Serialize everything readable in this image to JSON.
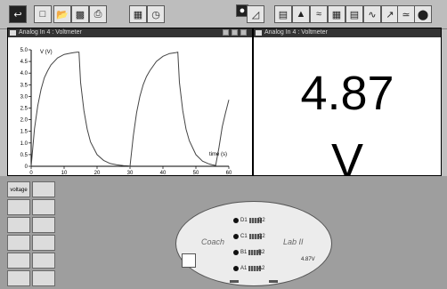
{
  "graph_panel": {
    "title": "Analog In 4 : Voltmeter",
    "ylabel": "V (V)",
    "xlabel": "time (s)"
  },
  "meter_panel": {
    "title": "Analog In 4 : Voltmeter",
    "value": "4.87",
    "unit": "V"
  },
  "chart_data": {
    "type": "line",
    "xlabel": "time (s)",
    "ylabel": "V (V)",
    "xlim": [
      0,
      60
    ],
    "ylim": [
      0,
      5.0
    ],
    "xticks": [
      "0",
      "10",
      "20",
      "30",
      "40",
      "50",
      "60"
    ],
    "yticks": [
      "0",
      "0.5",
      "1.0",
      "1.5",
      "2.0",
      "2.5",
      "3.0",
      "3.5",
      "4.0",
      "4.5",
      "5.0"
    ],
    "series": [
      {
        "x": [
          0,
          1,
          2,
          3,
          4,
          5,
          6,
          8,
          10,
          12,
          13,
          14,
          14.5,
          15,
          16,
          17,
          18,
          20,
          22,
          24,
          26,
          28,
          29.5,
          30,
          31,
          32,
          33,
          34,
          35,
          36,
          38,
          40,
          42,
          44,
          44.5,
          45,
          46,
          47,
          48,
          50,
          52,
          54,
          55,
          56,
          57,
          58,
          59,
          60
        ],
        "y": [
          0.0,
          1.6,
          2.6,
          3.3,
          3.8,
          4.1,
          4.35,
          4.65,
          4.8,
          4.86,
          4.88,
          4.9,
          4.9,
          3.6,
          2.4,
          1.6,
          1.05,
          0.5,
          0.25,
          0.12,
          0.06,
          0.03,
          0.02,
          0.0,
          1.3,
          2.3,
          3.0,
          3.5,
          3.85,
          4.1,
          4.5,
          4.72,
          4.84,
          4.88,
          4.9,
          3.6,
          2.4,
          1.6,
          1.1,
          0.5,
          0.22,
          0.1,
          0.06,
          0.04,
          0.8,
          1.7,
          2.3,
          2.85
        ]
      }
    ]
  },
  "toolbar": {
    "icons": [
      "exit-icon",
      "new-file-icon",
      "open-file-icon",
      "save-file-icon",
      "print-icon",
      "setup-icon",
      "timer-icon",
      "record-icon",
      "graph-icon",
      "table-icon",
      "meter-icon",
      "digits-icon",
      "scope-icon",
      "fft-icon",
      "calculator-icon",
      "stop-icon"
    ]
  },
  "signal_grid": {
    "cells": [
      "voltage",
      "",
      "",
      "",
      "",
      "",
      "",
      "",
      "",
      "",
      "",
      "",
      "",
      ""
    ]
  },
  "interface": {
    "left_label": "Coach",
    "right_label": "Lab II",
    "ports": [
      "D1",
      "D2",
      "C1",
      "C2",
      "B1",
      "B2",
      "A1",
      "A2"
    ],
    "reading": "4.87V"
  }
}
